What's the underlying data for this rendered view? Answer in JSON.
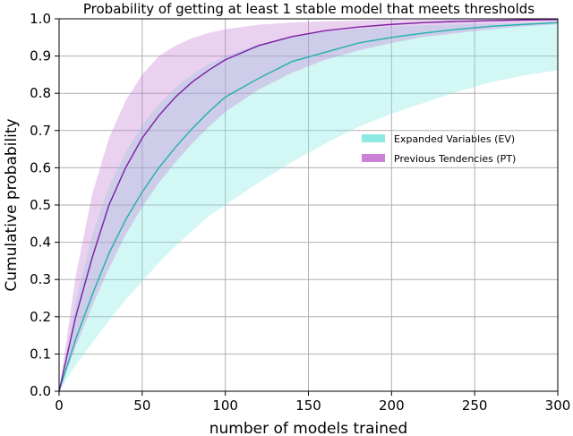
{
  "chart_data": {
    "type": "area",
    "title": "Probability of getting at least 1 stable model that meets thresholds",
    "xlabel": "number of models trained",
    "ylabel": "Cumulative probability",
    "xlim": [
      0,
      300
    ],
    "ylim": [
      0,
      1.0
    ],
    "xticks": [
      "0",
      "50",
      "100",
      "150",
      "200",
      "250",
      "300"
    ],
    "yticks": [
      "0.0",
      "0.1",
      "0.2",
      "0.3",
      "0.4",
      "0.5",
      "0.6",
      "0.7",
      "0.8",
      "0.9",
      "1.0"
    ],
    "grid": true,
    "legend_position": "center-right",
    "x": [
      0,
      10,
      20,
      30,
      40,
      50,
      60,
      70,
      80,
      90,
      100,
      120,
      140,
      160,
      180,
      200,
      220,
      240,
      260,
      280,
      300
    ],
    "series": [
      {
        "name": "Expanded Variables (EV)",
        "color": "#20b2aa",
        "fill_color": "#7fe8e0",
        "mean": [
          0.0,
          0.14,
          0.26,
          0.37,
          0.46,
          0.535,
          0.6,
          0.655,
          0.705,
          0.75,
          0.79,
          0.84,
          0.885,
          0.91,
          0.935,
          0.95,
          0.962,
          0.972,
          0.98,
          0.985,
          0.99
        ],
        "lower": [
          0.0,
          0.07,
          0.13,
          0.19,
          0.245,
          0.295,
          0.345,
          0.39,
          0.43,
          0.47,
          0.5,
          0.56,
          0.615,
          0.665,
          0.71,
          0.745,
          0.775,
          0.805,
          0.83,
          0.848,
          0.862
        ],
        "upper": [
          0.0,
          0.24,
          0.42,
          0.55,
          0.64,
          0.715,
          0.77,
          0.815,
          0.85,
          0.878,
          0.9,
          0.932,
          0.952,
          0.965,
          0.973,
          0.98,
          0.983,
          0.985,
          0.987,
          0.989,
          0.99
        ]
      },
      {
        "name": "Previous Tendencies (PT)",
        "color": "#7b1fa2",
        "fill_color": "#c77bd4",
        "mean": [
          0.0,
          0.2,
          0.36,
          0.5,
          0.6,
          0.68,
          0.74,
          0.79,
          0.83,
          0.862,
          0.89,
          0.928,
          0.952,
          0.968,
          0.978,
          0.985,
          0.99,
          0.993,
          0.995,
          0.997,
          0.998
        ],
        "lower": [
          0.0,
          0.12,
          0.23,
          0.33,
          0.42,
          0.495,
          0.56,
          0.615,
          0.665,
          0.71,
          0.75,
          0.81,
          0.855,
          0.89,
          0.915,
          0.935,
          0.952,
          0.962,
          0.972,
          0.98,
          0.985
        ],
        "upper": [
          0.0,
          0.31,
          0.53,
          0.68,
          0.78,
          0.85,
          0.9,
          0.928,
          0.948,
          0.962,
          0.972,
          0.984,
          0.99,
          0.993,
          0.995,
          0.997,
          0.998,
          0.999,
          0.999,
          1.0,
          1.0
        ]
      }
    ]
  }
}
